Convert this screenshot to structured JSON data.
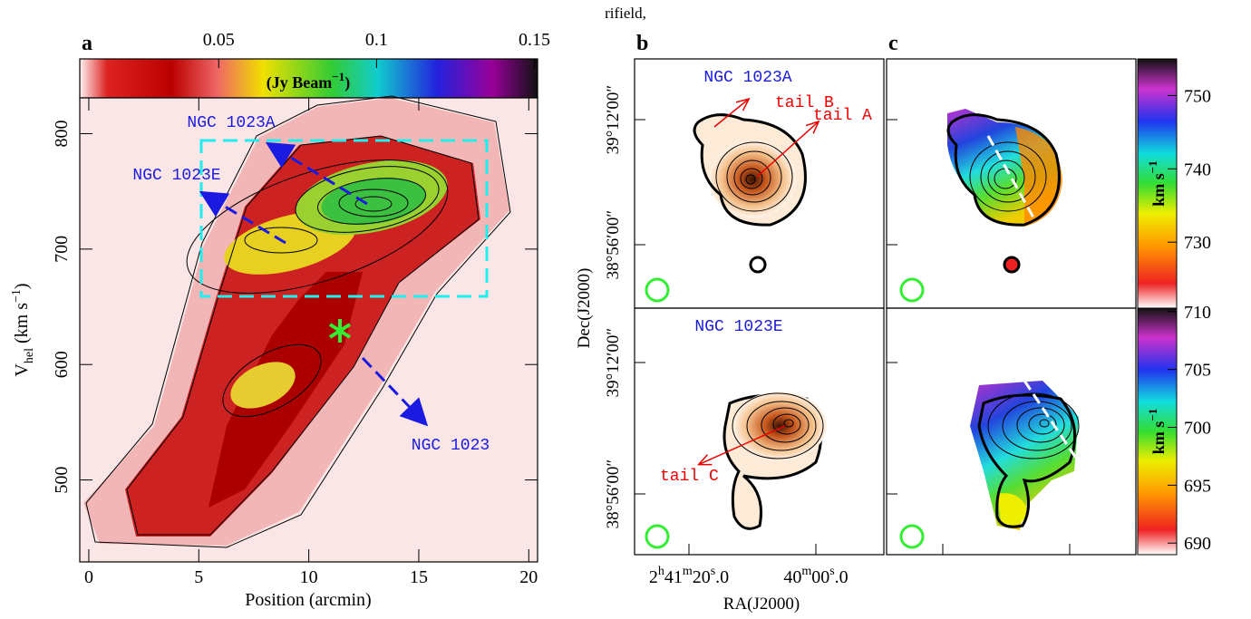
{
  "header_fragment": "rifield,",
  "panel_a": {
    "label": "a",
    "xlabel": "Position (arcmin)",
    "ylabel": [
      "V",
      "hel",
      " (km s",
      "−1",
      ")"
    ],
    "xlim": [
      -0.41,
      20.4
    ],
    "xticks": [
      0,
      5,
      10,
      15,
      20
    ],
    "ylim": [
      429,
      831
    ],
    "yticks": [
      500,
      600,
      700,
      800
    ],
    "colorbar": {
      "label": [
        "(Jy Beam",
        "−1",
        ")"
      ],
      "lim": [
        0.006,
        0.151
      ],
      "ticks": [
        0.05,
        0.1,
        0.15
      ]
    },
    "annotations": [
      "NGC 1023A",
      "NGC 1023E",
      "NGC 1023"
    ]
  },
  "panels_bc": {
    "labels": [
      "b",
      "c"
    ],
    "ylabel": "Dec(J2000)",
    "xlabel": "RA(J2000)",
    "dec_ticks": [
      "39°12′00″",
      "38°56′00″"
    ],
    "ra_ticks": [
      [
        "2",
        "h",
        "41",
        "m",
        "20",
        "s",
        ".0"
      ],
      [
        "40",
        "m",
        "00",
        "s",
        ".0"
      ]
    ],
    "top_annotations": {
      "galaxy": "NGC 1023A",
      "tails": [
        "tail B",
        "tail A"
      ]
    },
    "bottom_annotations": {
      "galaxy": "NGC 1023E",
      "tails": [
        "tail C"
      ]
    },
    "velocity_bars": [
      {
        "label": [
          "km s",
          "−1"
        ],
        "lim": [
          721,
          755
        ],
        "ticks": [
          730,
          740,
          750
        ]
      },
      {
        "label": [
          "km s",
          "−1"
        ],
        "lim": [
          689,
          710.3
        ],
        "ticks": [
          690,
          695,
          700,
          705,
          710
        ]
      }
    ]
  }
}
